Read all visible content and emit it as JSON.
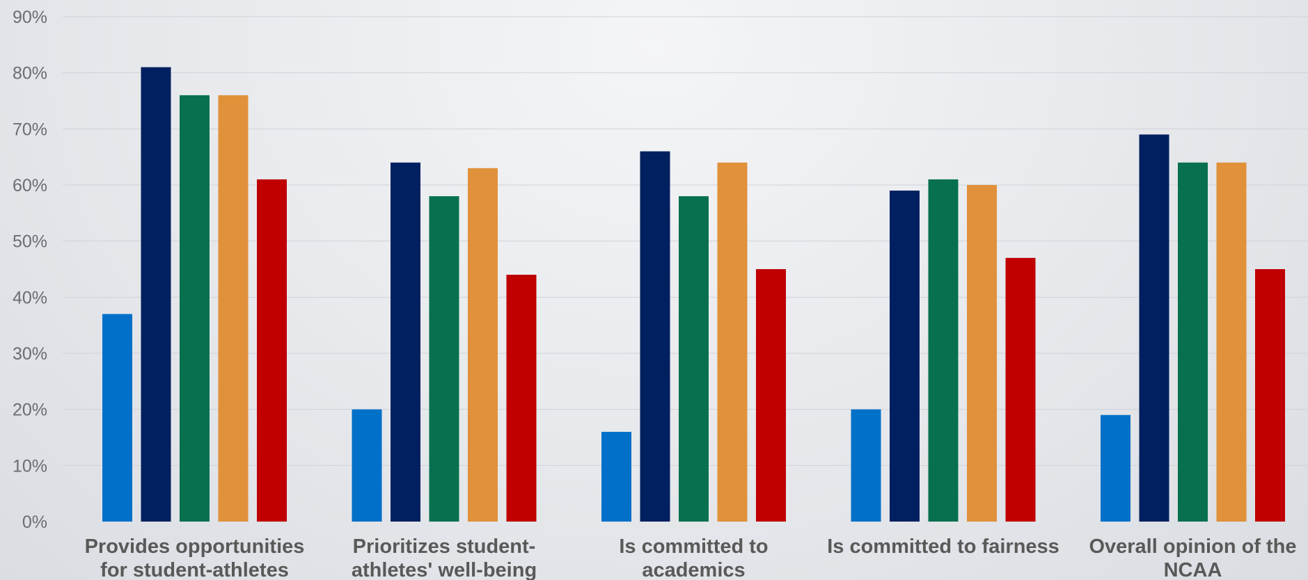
{
  "chart_data": {
    "type": "bar",
    "categories": [
      [
        "Provides opportunities",
        "for student-athletes"
      ],
      [
        "Prioritizes student-",
        "athletes' well-being"
      ],
      [
        "Is committed to",
        "academics"
      ],
      [
        "Is committed to fairness"
      ],
      [
        "Overall opinion of the",
        "NCAA"
      ]
    ],
    "series": [
      {
        "color": "#0070c8",
        "values": [
          37,
          20,
          16,
          20,
          19
        ]
      },
      {
        "color": "#002060",
        "values": [
          81,
          64,
          66,
          59,
          69
        ]
      },
      {
        "color": "#07704f",
        "values": [
          76,
          58,
          58,
          61,
          64
        ]
      },
      {
        "color": "#e0913a",
        "values": [
          76,
          63,
          64,
          60,
          64
        ]
      },
      {
        "color": "#c00000",
        "values": [
          61,
          44,
          45,
          47,
          45
        ]
      }
    ],
    "ylim": [
      0,
      90
    ],
    "yticks": [
      "0%",
      "10%",
      "20%",
      "30%",
      "40%",
      "50%",
      "60%",
      "70%",
      "80%",
      "90%"
    ],
    "grid": true
  }
}
